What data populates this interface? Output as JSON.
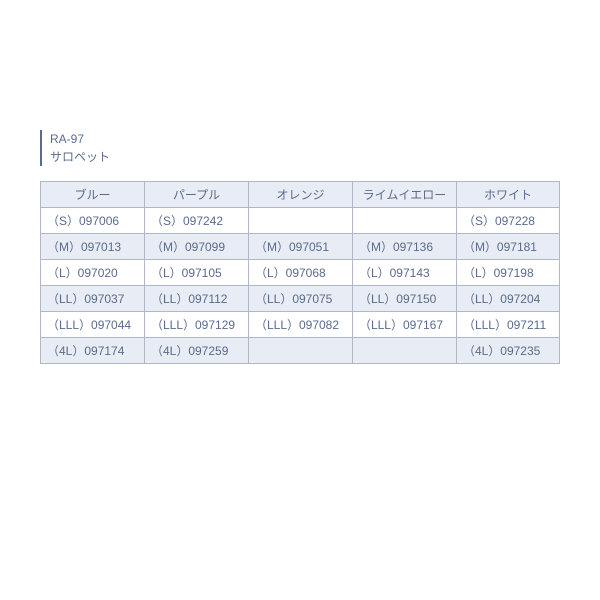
{
  "label": {
    "line1": "RA-97",
    "line2": "サロペット"
  },
  "table": {
    "columns": [
      "ブルー",
      "パープル",
      "オレンジ",
      "ライムイエロー",
      "ホワイト"
    ],
    "rows": [
      [
        "（S）097006",
        "（S）097242",
        "",
        "",
        "（S）097228"
      ],
      [
        "（M）097013",
        "（M）097099",
        "（M）097051",
        "（M）097136",
        "（M）097181"
      ],
      [
        "（L）097020",
        "（L）097105",
        "（L）097068",
        "（L）097143",
        "（L）097198"
      ],
      [
        "（LL）097037",
        "（LL）097112",
        "（LL）097075",
        "（LL）097150",
        "（LL）097204"
      ],
      [
        "（LLL）097044",
        "（LLL）097129",
        "（LLL）097082",
        "（LLL）097167",
        "（LLL）097211"
      ],
      [
        "（4L）097174",
        "（4L）097259",
        "",
        "",
        "（4L）097235"
      ]
    ],
    "stripe_rows": [
      1,
      3,
      5
    ],
    "border_color": "#b0b8c8",
    "header_bg": "#e8ecf4",
    "stripe_bg": "#e8ecf4",
    "text_color": "#5a6b8c"
  }
}
